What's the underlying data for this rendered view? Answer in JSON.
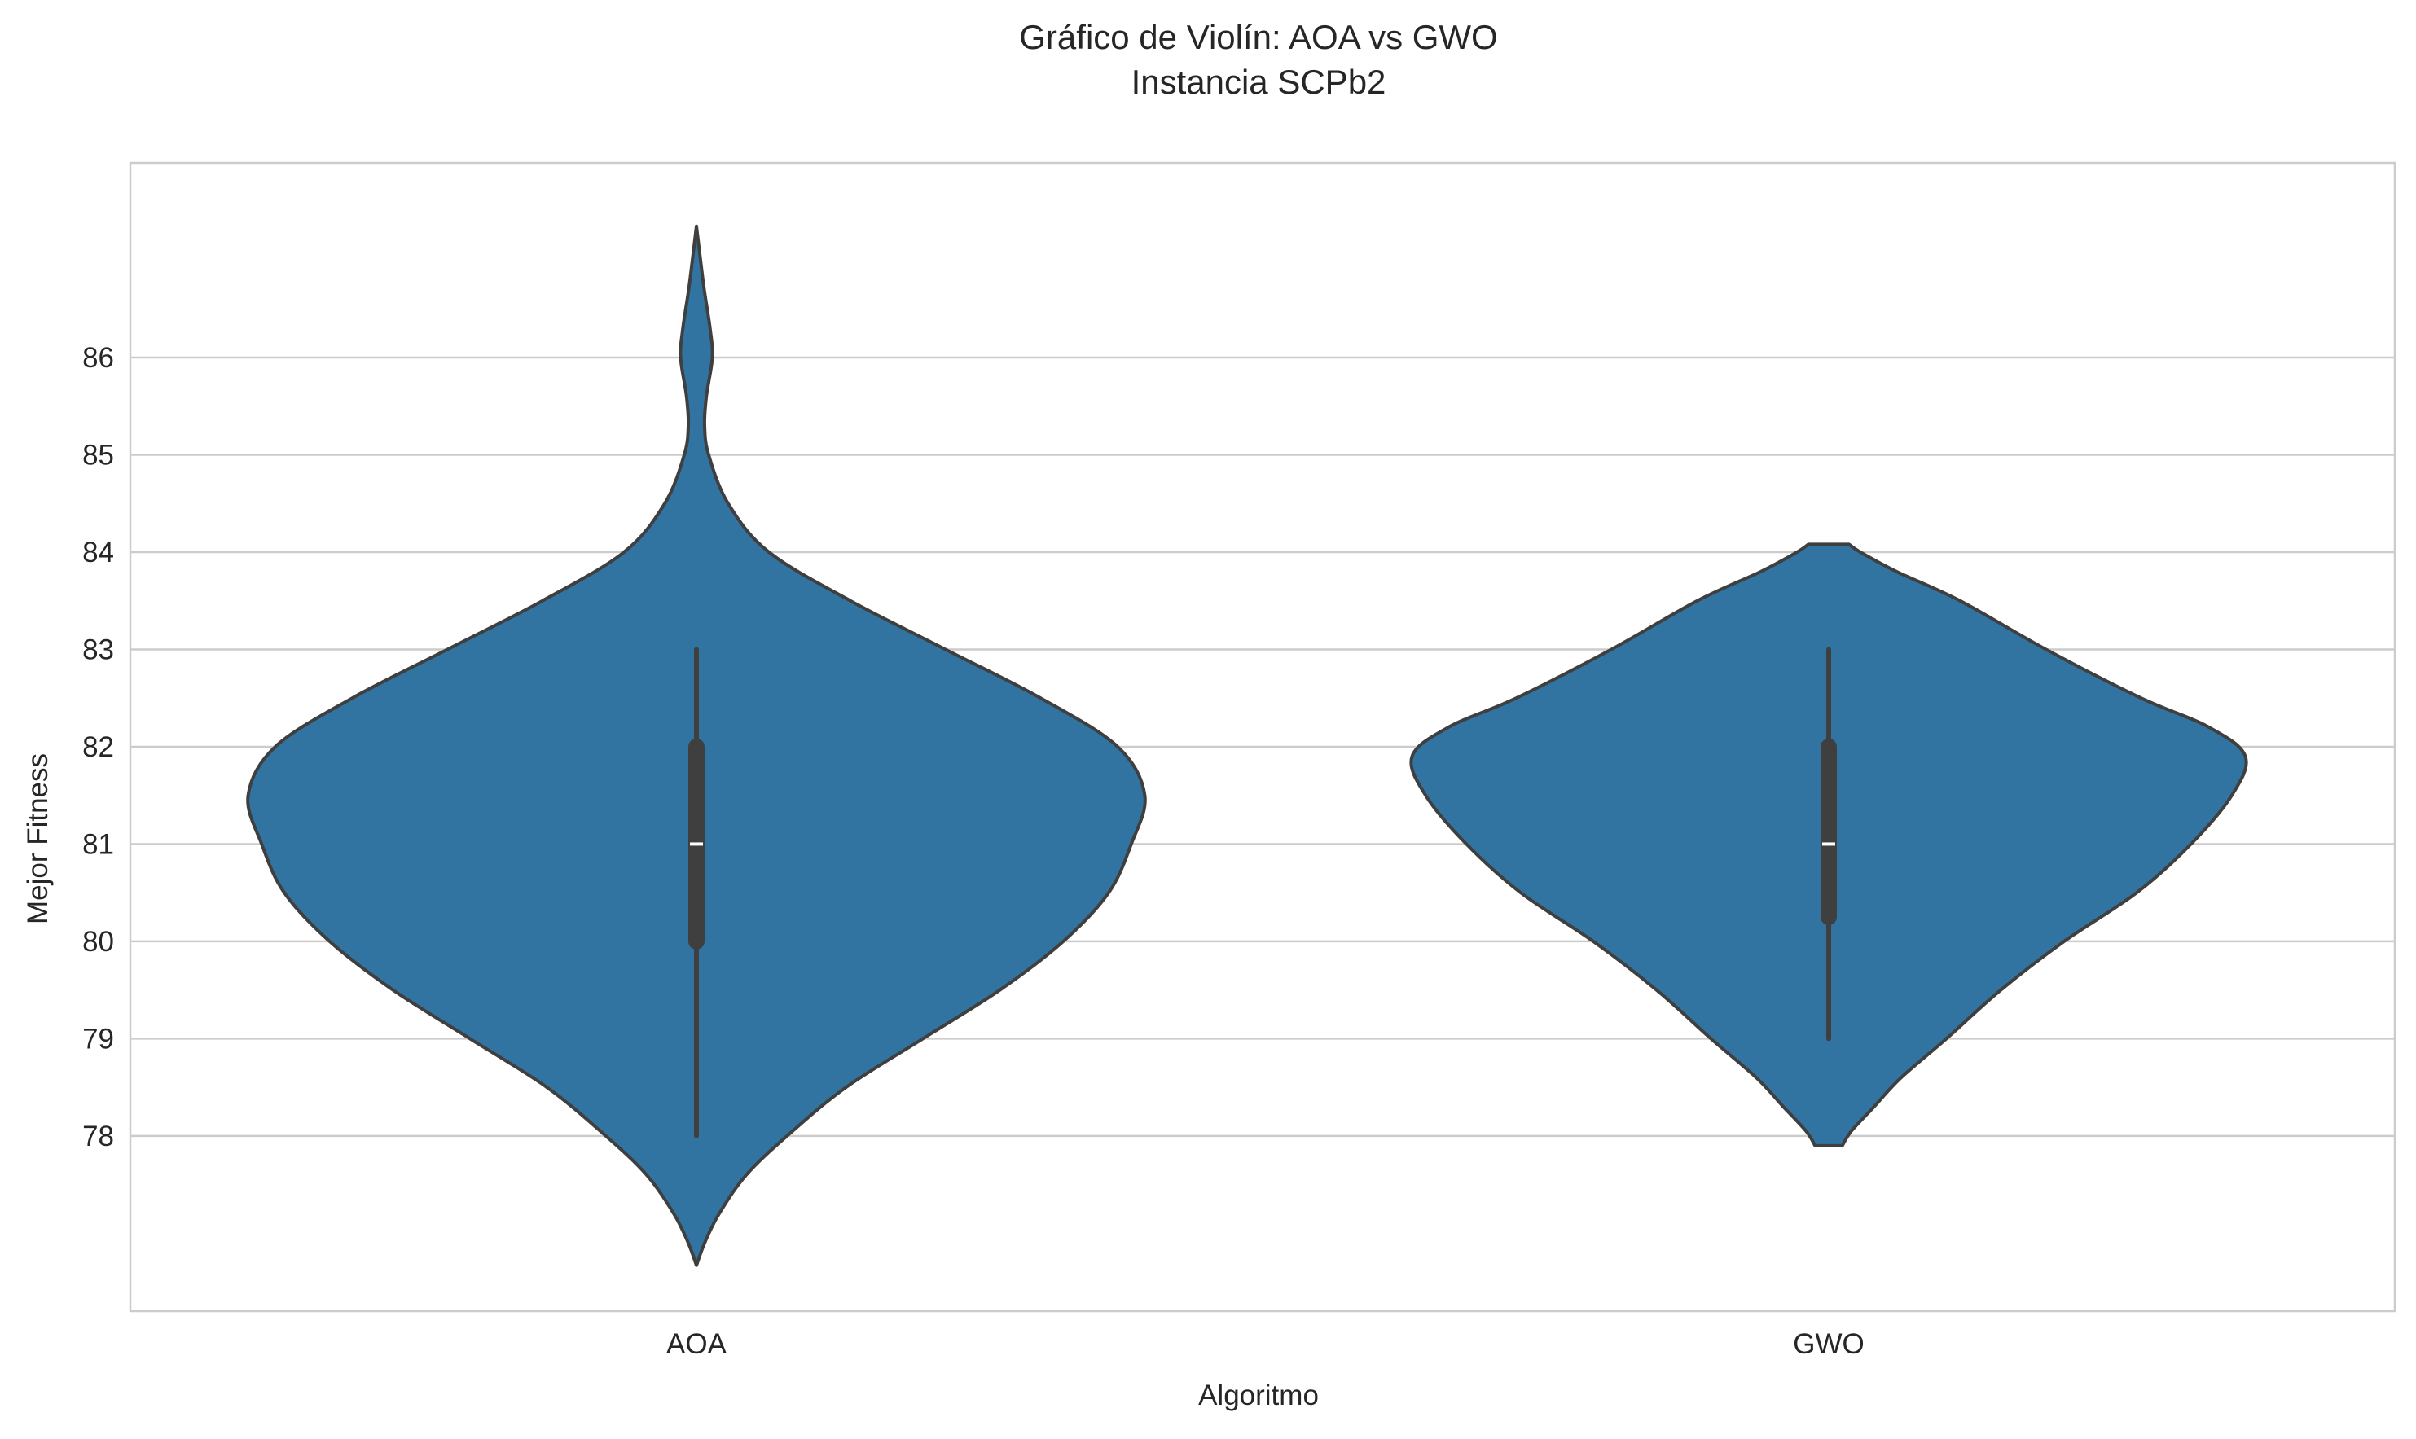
{
  "chart_data": {
    "type": "violin",
    "title": "Gráfico de Violín: AOA vs GWO",
    "subtitle": "Instancia SCPb2",
    "xlabel": "Algoritmo",
    "ylabel": "Mejor Fitness",
    "categories": [
      "AOA",
      "GWO"
    ],
    "yticks": [
      78,
      79,
      80,
      81,
      82,
      83,
      84,
      85,
      86
    ],
    "ylim": [
      76.2,
      88.0
    ],
    "grid": true,
    "colors": {
      "violin": "#3274a1",
      "edge": "#3f3f3f",
      "box": "#3f3f3f",
      "median": "#ffffff",
      "grid": "#cccccc",
      "frame": "#cccccc"
    },
    "series": [
      {
        "category": "AOA",
        "whisker_low": 78,
        "q1": 80,
        "median": 81,
        "q3": 82,
        "whisker_high": 83,
        "y_min": 76.67,
        "y_max": 87.35,
        "density": [
          [
            76.67,
            0.0
          ],
          [
            76.9,
            0.018
          ],
          [
            77.2,
            0.05
          ],
          [
            77.6,
            0.11
          ],
          [
            78.0,
            0.2
          ],
          [
            78.5,
            0.33
          ],
          [
            79.0,
            0.5
          ],
          [
            79.5,
            0.67
          ],
          [
            80.0,
            0.81
          ],
          [
            80.5,
            0.91
          ],
          [
            81.0,
            0.96
          ],
          [
            81.5,
            0.99
          ],
          [
            82.0,
            0.93
          ],
          [
            82.5,
            0.76
          ],
          [
            83.0,
            0.55
          ],
          [
            83.5,
            0.34
          ],
          [
            84.0,
            0.16
          ],
          [
            84.5,
            0.07
          ],
          [
            85.0,
            0.027
          ],
          [
            85.3,
            0.018
          ],
          [
            85.6,
            0.022
          ],
          [
            86.0,
            0.035
          ],
          [
            86.3,
            0.03
          ],
          [
            86.7,
            0.017
          ],
          [
            87.0,
            0.009
          ],
          [
            87.35,
            0.0
          ]
        ]
      },
      {
        "category": "GWO",
        "whisker_low": 79,
        "q1": 80.25,
        "median": 81,
        "q3": 82,
        "whisker_high": 83,
        "y_min": 77.9,
        "y_max": 84.08,
        "density": [
          [
            77.9,
            0.03
          ],
          [
            78.05,
            0.05
          ],
          [
            78.3,
            0.1
          ],
          [
            78.6,
            0.16
          ],
          [
            79.0,
            0.26
          ],
          [
            79.5,
            0.38
          ],
          [
            80.0,
            0.52
          ],
          [
            80.5,
            0.68
          ],
          [
            81.0,
            0.8
          ],
          [
            81.5,
            0.89
          ],
          [
            81.9,
            0.92
          ],
          [
            82.2,
            0.84
          ],
          [
            82.5,
            0.69
          ],
          [
            83.0,
            0.48
          ],
          [
            83.5,
            0.29
          ],
          [
            83.8,
            0.15
          ],
          [
            84.0,
            0.07
          ],
          [
            84.08,
            0.045
          ]
        ]
      }
    ]
  }
}
